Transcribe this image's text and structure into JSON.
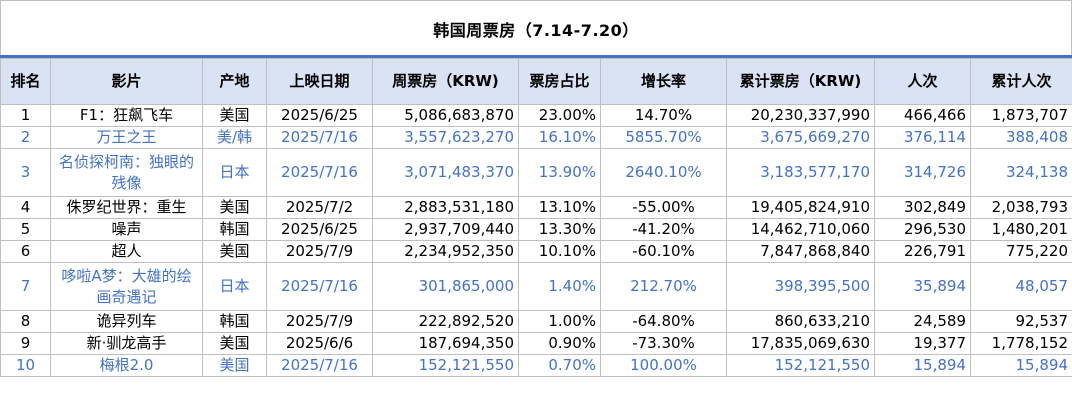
{
  "title": "韩国周票房（7.14-7.20）",
  "colors": {
    "header_bg": "#dae3f3",
    "accent": "#4472c4",
    "new_entry_text": "#4472c4",
    "grid": "#bfbfbf"
  },
  "headers": [
    "排名",
    "影片",
    "产地",
    "上映日期",
    "周票房（KRW)",
    "票房占比",
    "增长率",
    "累计票房（KRW)",
    "人次",
    "累计人次"
  ],
  "rows": [
    {
      "rank": "1",
      "film": "F1：狂飙飞车",
      "origin": "美国",
      "release": "2025/6/25",
      "weekly": "5,086,683,870",
      "share": "23.00%",
      "growth": "14.70%",
      "total": "20,230,337,990",
      "admissions": "466,466",
      "total_admissions": "1,873,707",
      "new": false
    },
    {
      "rank": "2",
      "film": "万王之王",
      "origin": "美/韩",
      "release": "2025/7/16",
      "weekly": "3,557,623,270",
      "share": "16.10%",
      "growth": "5855.70%",
      "total": "3,675,669,270",
      "admissions": "376,114",
      "total_admissions": "388,408",
      "new": true
    },
    {
      "rank": "3",
      "film": "名侦探柯南：独眼的残像",
      "origin": "日本",
      "release": "2025/7/16",
      "weekly": "3,071,483,370",
      "share": "13.90%",
      "growth": "2640.10%",
      "total": "3,183,577,170",
      "admissions": "314,726",
      "total_admissions": "324,138",
      "new": true
    },
    {
      "rank": "4",
      "film": "侏罗纪世界：重生",
      "origin": "美国",
      "release": "2025/7/2",
      "weekly": "2,883,531,180",
      "share": "13.10%",
      "growth": "-55.00%",
      "total": "19,405,824,910",
      "admissions": "302,849",
      "total_admissions": "2,038,793",
      "new": false
    },
    {
      "rank": "5",
      "film": "噪声",
      "origin": "韩国",
      "release": "2025/6/25",
      "weekly": "2,937,709,440",
      "share": "13.30%",
      "growth": "-41.20%",
      "total": "14,462,710,060",
      "admissions": "296,530",
      "total_admissions": "1,480,201",
      "new": false
    },
    {
      "rank": "6",
      "film": "超人",
      "origin": "美国",
      "release": "2025/7/9",
      "weekly": "2,234,952,350",
      "share": "10.10%",
      "growth": "-60.10%",
      "total": "7,847,868,840",
      "admissions": "226,791",
      "total_admissions": "775,220",
      "new": false
    },
    {
      "rank": "7",
      "film": "哆啦A梦：大雄的绘画奇遇记",
      "origin": "日本",
      "release": "2025/7/16",
      "weekly": "301,865,000",
      "share": "1.40%",
      "growth": "212.70%",
      "total": "398,395,500",
      "admissions": "35,894",
      "total_admissions": "48,057",
      "new": true
    },
    {
      "rank": "8",
      "film": "诡异列车",
      "origin": "韩国",
      "release": "2025/7/9",
      "weekly": "222,892,520",
      "share": "1.00%",
      "growth": "-64.80%",
      "total": "860,633,210",
      "admissions": "24,589",
      "total_admissions": "92,537",
      "new": false
    },
    {
      "rank": "9",
      "film": "新·驯龙高手",
      "origin": "美国",
      "release": "2025/6/6",
      "weekly": "187,694,350",
      "share": "0.90%",
      "growth": "-73.30%",
      "total": "17,835,069,630",
      "admissions": "19,377",
      "total_admissions": "1,778,152",
      "new": false
    },
    {
      "rank": "10",
      "film": "梅根2.0",
      "origin": "美国",
      "release": "2025/7/16",
      "weekly": "152,121,550",
      "share": "0.70%",
      "growth": "100.00%",
      "total": "152,121,550",
      "admissions": "15,894",
      "total_admissions": "15,894",
      "new": true
    }
  ]
}
